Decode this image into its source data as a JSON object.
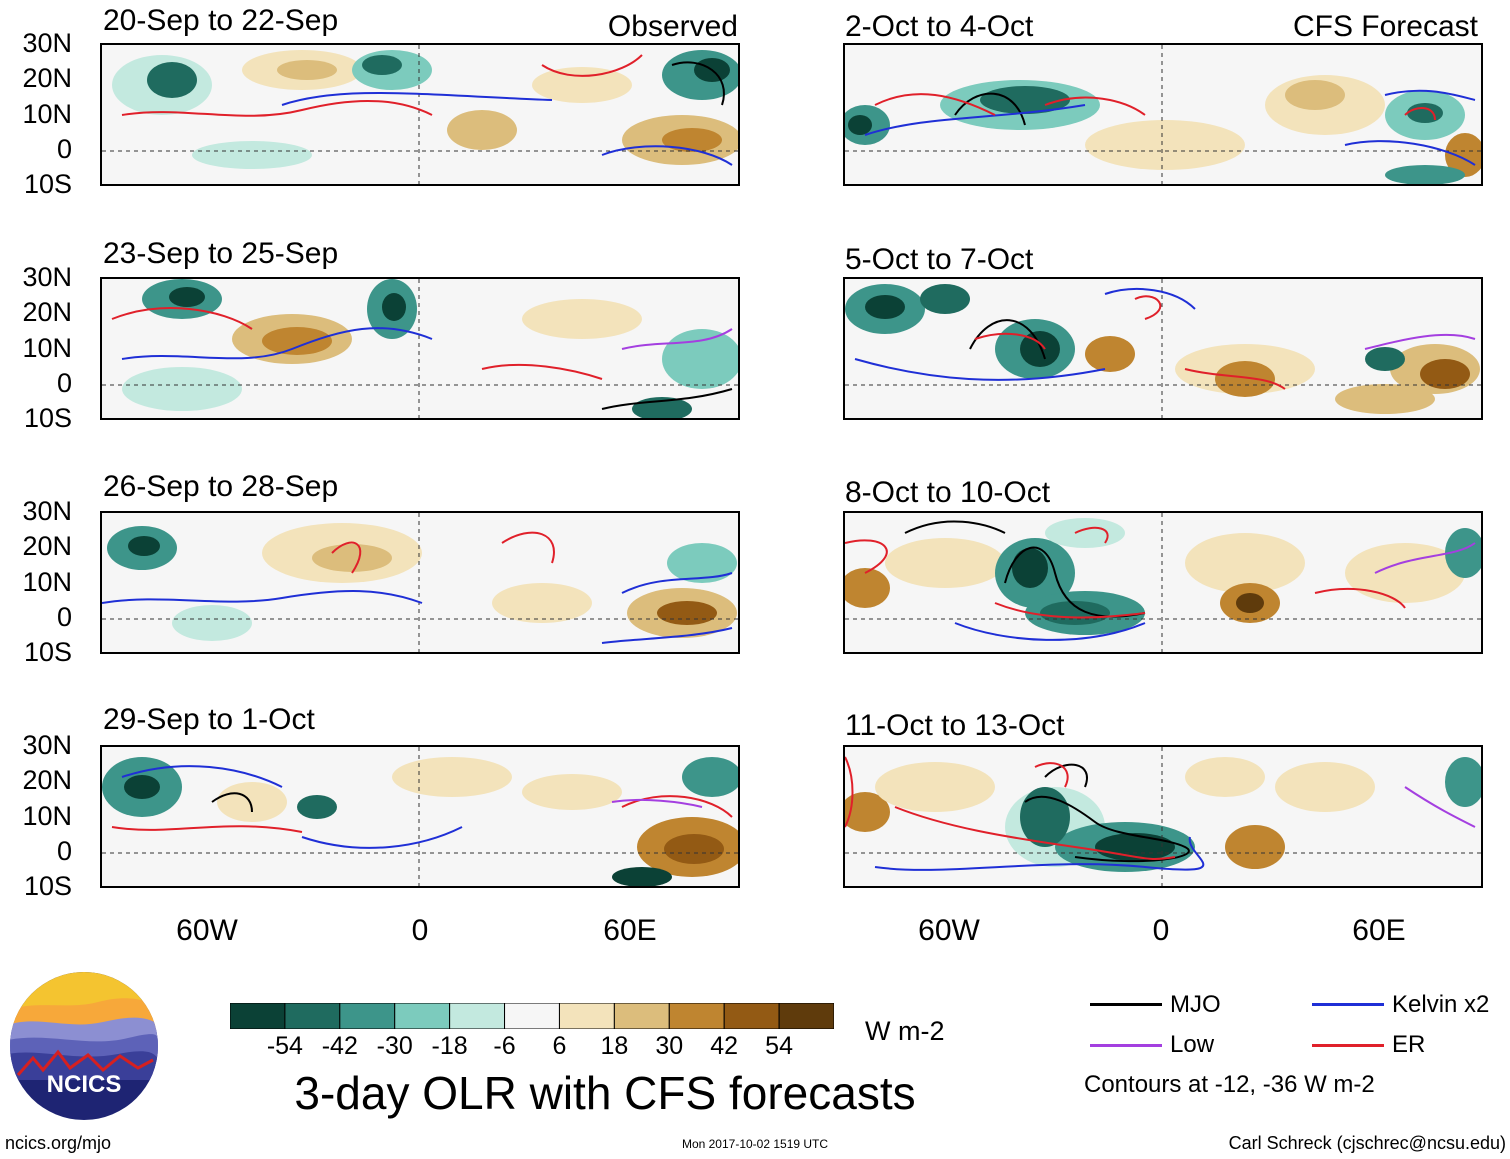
{
  "header": {
    "left_label": "Observed",
    "right_label": "CFS Forecast"
  },
  "panels": [
    {
      "title": "20-Sep to 22-Sep"
    },
    {
      "title": "23-Sep to 25-Sep"
    },
    {
      "title": "26-Sep to 28-Sep"
    },
    {
      "title": "29-Sep to 1-Oct"
    },
    {
      "title": "2-Oct to 4-Oct"
    },
    {
      "title": "5-Oct to 7-Oct"
    },
    {
      "title": "8-Oct to 10-Oct"
    },
    {
      "title": "11-Oct to 13-Oct"
    }
  ],
  "axes": {
    "lat_ticks": [
      "30N",
      "20N",
      "10N",
      "0",
      "10S"
    ],
    "lon_ticks": [
      "60W",
      "0",
      "60E"
    ]
  },
  "colorbar": {
    "ticks": [
      "-54",
      "-42",
      "-30",
      "-18",
      "-6",
      "6",
      "18",
      "30",
      "42",
      "54"
    ],
    "colors": [
      "#0b4136",
      "#1f6b5f",
      "#3d958a",
      "#7ccbbd",
      "#c3e9df",
      "#f6f6f6",
      "#f3e3bb",
      "#dcbd7c",
      "#bf8530",
      "#935a14",
      "#5f3b0c"
    ],
    "units": "W m-2"
  },
  "legend": {
    "items": [
      {
        "label": "MJO",
        "color": "#000000"
      },
      {
        "label": "Kelvin x2",
        "color": "#1f2fd6"
      },
      {
        "label": "Low",
        "color": "#a43fe0"
      },
      {
        "label": "ER",
        "color": "#e0202a"
      }
    ],
    "note": "Contours at -12, -36 W m-2"
  },
  "title": "3-day OLR with CFS forecasts",
  "logo_text": "NCICS",
  "footer": {
    "left": "ncics.org/mjo",
    "center": "Mon 2017-10-02 1519 UTC",
    "right": "Carl Schreck (cjschrec@ncsu.edu)"
  },
  "chart_data": {
    "type": "heatmap",
    "variable": "3-day OLR anomaly with CFS forecasts",
    "units": "W m-2",
    "lat_range": [
      "10S",
      "30N"
    ],
    "lon_range": [
      "90W",
      "90E"
    ],
    "color_levels": [
      -54,
      -42,
      -30,
      -18,
      -6,
      6,
      18,
      30,
      42,
      54
    ],
    "contour_levels": [
      -12,
      -36
    ],
    "periods": [
      "20-Sep to 22-Sep",
      "23-Sep to 25-Sep",
      "26-Sep to 28-Sep",
      "29-Sep to 1-Oct",
      "2-Oct to 4-Oct",
      "5-Oct to 7-Oct",
      "8-Oct to 10-Oct",
      "11-Oct to 13-Oct"
    ]
  }
}
